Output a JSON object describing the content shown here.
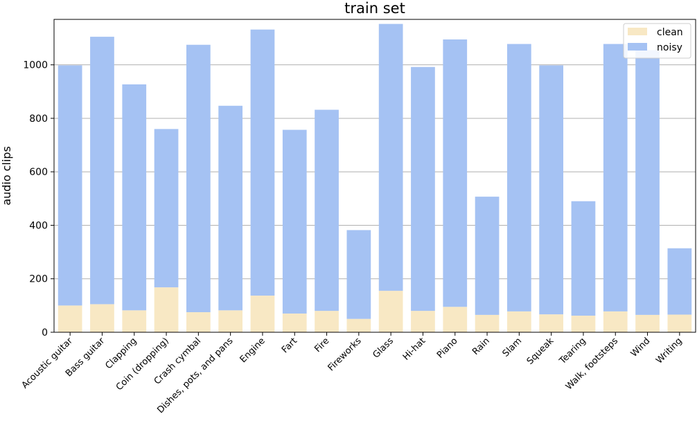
{
  "chart_data": {
    "type": "bar",
    "stacked": true,
    "title": "train set",
    "xlabel": "",
    "ylabel": "audio clips",
    "ylim": [
      0,
      1170
    ],
    "yticks": [
      0,
      200,
      400,
      600,
      800,
      1000
    ],
    "grid": "horizontal",
    "legend_position": "top-right",
    "categories": [
      "Acoustic guitar",
      "Bass guitar",
      "Clapping",
      "Coin (dropping)",
      "Crash cymbal",
      "Dishes, pots, and pans",
      "Engine",
      "Fart",
      "Fire",
      "Fireworks",
      "Glass",
      "Hi-hat",
      "Piano",
      "Rain",
      "Slam",
      "Squeak",
      "Tearing",
      "Walk, footsteps",
      "Wind",
      "Writing"
    ],
    "series": [
      {
        "name": "clean",
        "color": "#f8e8c4",
        "values": [
          100,
          105,
          82,
          168,
          75,
          82,
          137,
          70,
          80,
          50,
          155,
          80,
          95,
          65,
          78,
          67,
          62,
          78,
          65,
          66
        ]
      },
      {
        "name": "noisy",
        "color": "#a5c2f3",
        "values": [
          898,
          1000,
          845,
          592,
          1000,
          765,
          995,
          687,
          752,
          332,
          998,
          912,
          1000,
          442,
          1000,
          931,
          428,
          1000,
          990,
          248
        ]
      }
    ]
  }
}
